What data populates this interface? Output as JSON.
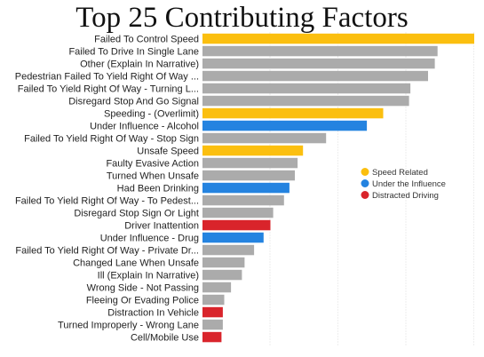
{
  "chart_data": {
    "type": "bar",
    "orientation": "horizontal",
    "title": "Top 25 Contributing Factors",
    "xlabel": "",
    "ylabel": "",
    "grid": true,
    "legend_position": "right",
    "categories": [
      "Failed To Control Speed",
      "Failed To Drive In Single Lane",
      "Other (Explain In Narrative)",
      "Pedestrian Failed To Yield Right Of Way ...",
      "Failed To Yield Right Of Way - Turning L...",
      "Disregard Stop And Go Signal",
      "Speeding - (Overlimit)",
      "Under Influence - Alcohol",
      "Failed To Yield Right Of Way - Stop Sign",
      "Unsafe Speed",
      "Faulty Evasive Action",
      "Turned When Unsafe",
      "Had Been Drinking",
      "Failed To Yield Right Of Way - To Pedest...",
      "Disregard Stop Sign Or Light",
      "Driver Inattention",
      "Under Influence - Drug",
      "Failed To Yield Right Of Way - Private Dr...",
      "Changed Lane When Unsafe",
      "Ill (Explain In Narrative)",
      "Wrong Side - Not Passing",
      "Fleeing Or Evading Police",
      "Distraction In Vehicle",
      "Turned Improperly - Wrong Lane",
      "Cell/Mobile Use"
    ],
    "values": [
      100,
      86.5,
      85.5,
      83,
      76.5,
      76,
      66.5,
      60.5,
      45.5,
      37,
      35,
      34,
      32,
      30,
      26,
      25,
      22.5,
      19,
      15.5,
      14.5,
      10.5,
      8,
      7.5,
      7.5,
      7
    ],
    "groups": [
      "speed",
      "other",
      "other",
      "other",
      "other",
      "other",
      "speed",
      "dui",
      "other",
      "speed",
      "other",
      "other",
      "dui",
      "other",
      "other",
      "distracted",
      "dui",
      "other",
      "other",
      "other",
      "other",
      "other",
      "distracted",
      "other",
      "distracted"
    ],
    "xlim": [
      0,
      100
    ],
    "colors": {
      "speed": "#FBBF0F",
      "dui": "#2483E0",
      "distracted": "#D9242B",
      "other": "#ABABAB",
      "grid": "#DDDDDD"
    },
    "legend": [
      {
        "group": "speed",
        "label": "Speed Related"
      },
      {
        "group": "dui",
        "label": "Under the Influence"
      },
      {
        "group": "distracted",
        "label": "Distracted Driving"
      }
    ]
  }
}
